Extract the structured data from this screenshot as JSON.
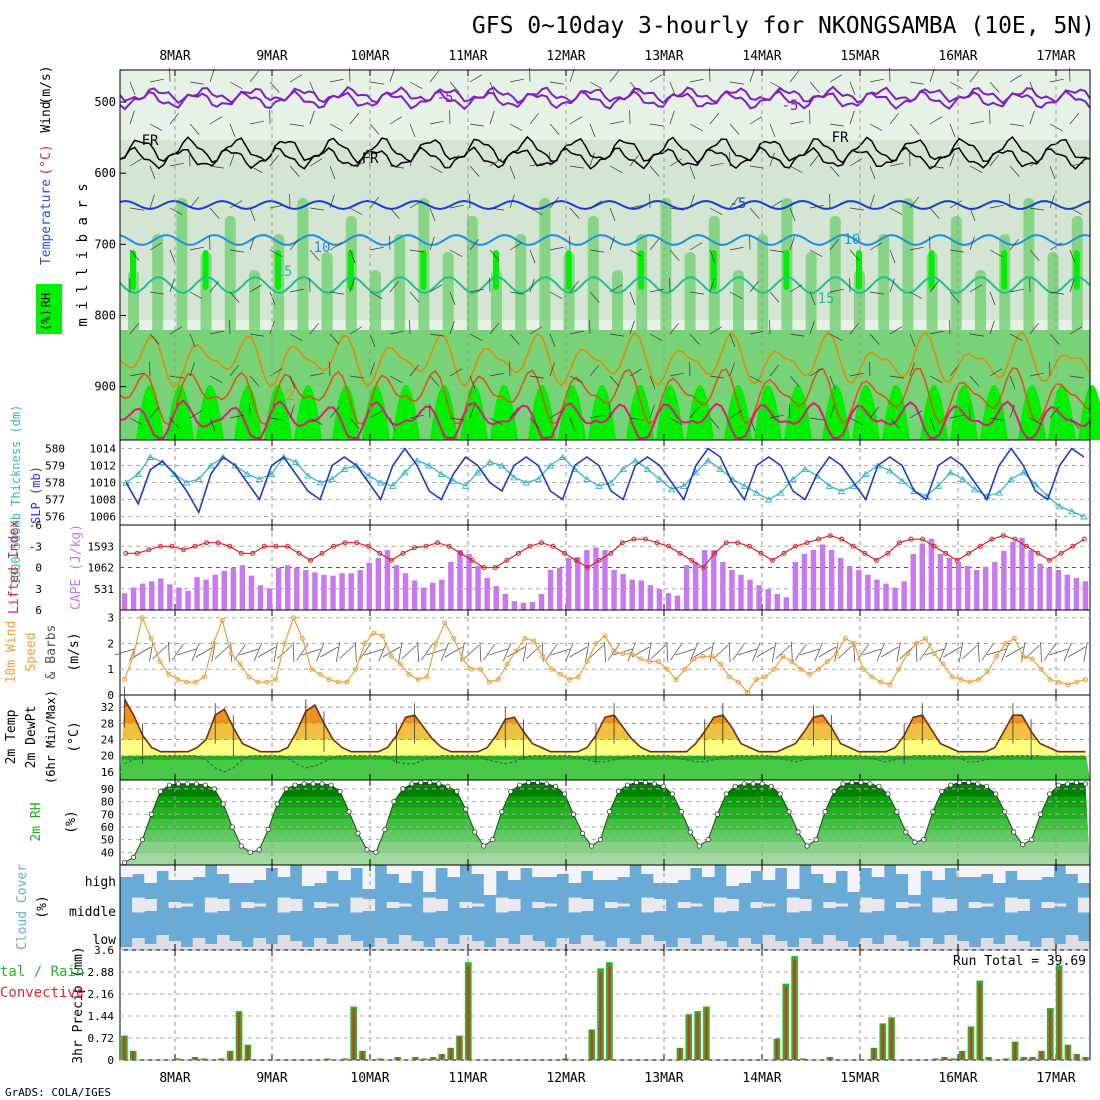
{
  "title": "GFS 0~10day 3-hourly for NKONGSAMBA (10E, 5N)",
  "footer": "GrADS: COLA/IGES",
  "dates": [
    "8MAR",
    "9MAR",
    "10MAR",
    "11MAR",
    "12MAR",
    "13MAR",
    "14MAR",
    "15MAR",
    "16MAR",
    "17MAR"
  ],
  "colors": {
    "rh_light": "#e6f2e6",
    "rh_mid": "#c8dcc8",
    "rh_green": "#78d278",
    "rh_bright": "#00f000",
    "slp": "#1e3cc8",
    "thickness": "#3cb4c8",
    "cape": "#c878f0",
    "lifted": "#d22828",
    "wind": "#f0a03c",
    "cloud": "#6aaad6",
    "precip_total": "#28b428",
    "precip_conv": "#e62828"
  },
  "panels": {
    "upper": {
      "ylabel_left": [
        "Wind",
        "(m/s)",
        "Temperature",
        "(°C)",
        "RH",
        "(%)"
      ],
      "ylabel_unit": "m i l l i b a r s",
      "yticks": [
        500,
        600,
        700,
        800,
        900
      ],
      "contour_labels": [
        "-5",
        "-5",
        "FR",
        "FR",
        "FR",
        "-5",
        "10",
        "10",
        "15",
        "15",
        "2"
      ]
    },
    "slp": {
      "ylabel_left": "1000-500mb Thickness (dm)",
      "ylabel_right": "SLP (mb)",
      "ticks_left": [
        580,
        579,
        578,
        577,
        576
      ],
      "ticks_right": [
        1014,
        1012,
        1010,
        1008,
        1006
      ]
    },
    "cape": {
      "ylabel_left": "Lifted Index",
      "ylabel_right": "CAPE (J/kg)",
      "ticks_left": [
        "-6",
        "-3",
        "0",
        "3",
        "6"
      ],
      "ticks_right": [
        1593,
        1062,
        531
      ]
    },
    "wind": {
      "ylabel": [
        "10m Wind",
        "Speed",
        "& Barbs",
        "(m/s)"
      ],
      "ticks": [
        3,
        2,
        1,
        0
      ]
    },
    "temp": {
      "ylabel": [
        "2m Temp",
        "2m DewPt",
        "(6hr Min/Max)",
        "(°C)"
      ],
      "ticks": [
        32,
        28,
        24,
        20,
        16
      ]
    },
    "rh": {
      "ylabel": [
        "2m RH",
        "(%)"
      ],
      "ticks": [
        90,
        80,
        70,
        60,
        50,
        40
      ]
    },
    "cloud": {
      "ylabel": [
        "Cloud Cover",
        "(%)"
      ],
      "levels": [
        "high",
        "middle",
        "low"
      ]
    },
    "precip": {
      "ylabel": [
        "3hr Precip (mm)"
      ],
      "legend": [
        "tal / Rain",
        "Convective"
      ],
      "run_total": "Run Total = 39.69",
      "ticks": [
        "3.6",
        "2.88",
        "2.16",
        "1.44",
        "0.72",
        "0"
      ]
    }
  },
  "chart_data": [
    {
      "type": "line",
      "name": "slp_thickness",
      "x_labels": [
        "8MAR",
        "9MAR",
        "10MAR",
        "11MAR",
        "12MAR",
        "13MAR",
        "14MAR",
        "15MAR",
        "16MAR",
        "17MAR"
      ],
      "series": [
        {
          "name": "SLP (mb)",
          "values": [
            1010,
            1007.5,
            1011.5,
            1012.5,
            1011,
            1009,
            1006.5,
            1011,
            1013,
            1012,
            1010,
            1008,
            1012,
            1013,
            1011,
            1009,
            1008,
            1012,
            1013,
            1012,
            1010,
            1008,
            1012,
            1014,
            1012,
            1009,
            1008,
            1011,
            1013,
            1012,
            1010,
            1009,
            1012,
            1013,
            1012,
            1009,
            1008,
            1012,
            1013,
            1012,
            1009,
            1008,
            1012,
            1013,
            1012,
            1010,
            1008,
            1012,
            1014,
            1013,
            1010,
            1008,
            1012,
            1013,
            1012,
            1009,
            1008,
            1011,
            1013,
            1012,
            1010,
            1008,
            1012,
            1013,
            1012,
            1009,
            1008,
            1012,
            1013,
            1012,
            1010,
            1008,
            1012,
            1014,
            1012,
            1009,
            1008,
            1012,
            1014,
            1013
          ]
        },
        {
          "name": "Thickness (dm)",
          "values": [
            578,
            578.5,
            579.5,
            579.2,
            578.5,
            578,
            578.2,
            579,
            579.5,
            579,
            578.5,
            578.2,
            578.5,
            579.5,
            579.2,
            578.4,
            578,
            578.2,
            578.8,
            579,
            578.4,
            578,
            577.8,
            578.6,
            579.3,
            579,
            578.5,
            578.1,
            577.8,
            578.6,
            579.2,
            579,
            578.3,
            578,
            578.2,
            579,
            579.5,
            578.8,
            578.2,
            577.8,
            578,
            578.8,
            579.3,
            578.8,
            578.2,
            577.6,
            577.8,
            578.6,
            579.3,
            578.8,
            578.2,
            577.8,
            577.4,
            577,
            577.4,
            578.2,
            578.8,
            578.4,
            577.8,
            577.5,
            577.8,
            578.5,
            579,
            578.7,
            578.1,
            577.5,
            577.2,
            577.8,
            578.6,
            578.2,
            577.6,
            577.2,
            577.4,
            578.2,
            578.6,
            577.9,
            577.2,
            576.6,
            576.3,
            576
          ]
        }
      ],
      "ylim_left": [
        575.5,
        580.5
      ],
      "ylim_right": [
        1005,
        1015
      ]
    },
    {
      "type": "bar",
      "name": "cape_lifted",
      "series": [
        {
          "name": "CAPE (J/kg)",
          "values": [
            420,
            560,
            660,
            720,
            790,
            640,
            560,
            480,
            820,
            760,
            880,
            980,
            1060,
            1120,
            860,
            620,
            540,
            1060,
            1120,
            1060,
            1000,
            940,
            880,
            860,
            920,
            920,
            1000,
            1180,
            1300,
            1500,
            1120,
            920,
            740,
            560,
            680,
            760,
            1200,
            1500,
            1400,
            1100,
            800,
            600,
            400,
            220,
            180,
            200,
            400,
            1000,
            1060,
            1300,
            1320,
            1500,
            1560,
            1500,
            1000,
            900,
            760,
            740,
            620,
            520,
            420,
            360,
            1120,
            1200,
            1500,
            1500,
            1200,
            1000,
            880,
            760,
            620,
            520,
            400,
            320,
            1200,
            1400,
            1500,
            1640,
            1500,
            1300,
            1100,
            1000,
            880,
            760,
            660,
            560,
            720,
            1400,
            1660,
            1780,
            1400,
            1300,
            1200,
            1100,
            1000,
            1080,
            1200,
            1480,
            1700,
            1800,
            1500,
            1160,
            1060,
            1000,
            880,
            800,
            720
          ]
        },
        {
          "name": "Lifted Index",
          "values": [
            -2,
            -2,
            -2.5,
            -3,
            -3,
            -2.5,
            -3,
            -3.5,
            -3.5,
            -3,
            -2,
            -2,
            -3,
            -3,
            -3,
            -2,
            -1,
            -2,
            -3,
            -3.5,
            -3.5,
            -3,
            -2,
            -1,
            -2,
            -2.8,
            -3,
            -3.5,
            -3,
            -2,
            -1,
            0,
            0,
            -1,
            -2,
            -3,
            -3.5,
            -3,
            -2,
            -1,
            0,
            -1,
            -2,
            -3.5,
            -4,
            -4,
            -3.5,
            -3,
            -2,
            -1,
            0,
            -2,
            -3.5,
            -3.5,
            -3,
            -2,
            -1,
            -2,
            -3,
            -3.5,
            -4,
            -4.5,
            -4,
            -3,
            -2,
            -1,
            -2,
            -3.5,
            -4,
            -4,
            -3,
            -2,
            -1,
            -2,
            -3,
            -4,
            -4.5,
            -4,
            -3,
            -2,
            -1,
            -2,
            -3,
            -4
          ]
        }
      ],
      "ylim_cape": [
        0,
        2124
      ],
      "ylim_li": [
        6,
        -6
      ]
    },
    {
      "type": "line",
      "name": "wind_speed",
      "series": [
        {
          "name": "10m Wind Speed (m/s)",
          "values": [
            0.6,
            1.5,
            3.0,
            2.2,
            1.3,
            0.8,
            0.6,
            0.5,
            0.5,
            0.7,
            2.0,
            2.9,
            1.6,
            1.2,
            0.7,
            0.5,
            0.5,
            0.6,
            2.0,
            3.0,
            2.2,
            1.0,
            0.8,
            0.6,
            0.5,
            0.5,
            1.0,
            2.0,
            2.4,
            2.3,
            1.5,
            1.2,
            0.8,
            0.6,
            0.7,
            2.0,
            2.8,
            2.2,
            1.4,
            1.0,
            1.0,
            0.5,
            0.6,
            1.2,
            1.7,
            2.2,
            2.1,
            1.5,
            1.0,
            0.8,
            0.6,
            0.7,
            1.3,
            2.0,
            2.3,
            1.7,
            1.6,
            1.6,
            1.4,
            1.3,
            1.3,
            1.0,
            0.6,
            1.0,
            1.4,
            1.5,
            1.5,
            1.2,
            0.7,
            0.5,
            0.1,
            0.6,
            0.7,
            1.0,
            1.5,
            1.3,
            1.0,
            0.8,
            1.0,
            1.3,
            1.6,
            2.2,
            2.0,
            1.0,
            0.7,
            0.5,
            0.4,
            1.0,
            1.6,
            2.0,
            2.2,
            1.6,
            1.2,
            0.7,
            0.6,
            0.5,
            0.6,
            0.9,
            1.5,
            2.0,
            2.2,
            1.5,
            1.4,
            1.0,
            0.6,
            0.5,
            0.4,
            0.5,
            0.6
          ]
        }
      ],
      "ylim": [
        0,
        3.3
      ]
    },
    {
      "type": "area",
      "name": "temperature",
      "series": [
        {
          "name": "2m Temp (°C)",
          "values": [
            34,
            30,
            25,
            22,
            21,
            21,
            21,
            21,
            22,
            24,
            30,
            31.5,
            27,
            23,
            22,
            21,
            21,
            21,
            22,
            26,
            31,
            32.5,
            28,
            24,
            22,
            21,
            21,
            21,
            21,
            22,
            25,
            29.5,
            30,
            27,
            24,
            22,
            21,
            21,
            21,
            21,
            22,
            25,
            29,
            29.5,
            26,
            23,
            22,
            21,
            21,
            21,
            21,
            22,
            25,
            29.5,
            30,
            27,
            24,
            22,
            21,
            21,
            21,
            21,
            21,
            23,
            26,
            29.5,
            30,
            27,
            23,
            22,
            21,
            21,
            21,
            22,
            23,
            26,
            29.5,
            30,
            27,
            23,
            22,
            21,
            21,
            21,
            21,
            22,
            25,
            29.5,
            30,
            26.5,
            23,
            22,
            21,
            21,
            21,
            21,
            22,
            26,
            30,
            30,
            26,
            23,
            22,
            21,
            21,
            21,
            21
          ]
        },
        {
          "name": "2m DewPt (°C)",
          "values": [
            18,
            19,
            19.5,
            20,
            20,
            20,
            20,
            20,
            20,
            19,
            17,
            16,
            17,
            19,
            20,
            20,
            20,
            20,
            19.5,
            18,
            17,
            17.5,
            18.5,
            19.5,
            20,
            20,
            20,
            20,
            20,
            19.5,
            18.5,
            18,
            18,
            19,
            19.5,
            20,
            20,
            20,
            20,
            20,
            19,
            18.5,
            18,
            18.5,
            19.5,
            20,
            20,
            20,
            20,
            20,
            19.5,
            19,
            18.5,
            18.5,
            19,
            19.5,
            20,
            20,
            20,
            20,
            20,
            19.5,
            19,
            18.5,
            18.5,
            19,
            19.5,
            20,
            20,
            20,
            20,
            20,
            19.5,
            19,
            18.5,
            19,
            19.5,
            20,
            20,
            20,
            20,
            20,
            19.5,
            19,
            18.5,
            19,
            19.5,
            20,
            20,
            20,
            20,
            20,
            19.5,
            18.5,
            18.5,
            19,
            19.5,
            20,
            20,
            20,
            20,
            20
          ]
        }
      ],
      "ylim": [
        14,
        35
      ]
    },
    {
      "type": "area",
      "name": "relative_humidity",
      "series": [
        {
          "name": "2m RH (%)",
          "values": [
            32,
            36,
            50,
            70,
            88,
            93,
            94,
            94,
            94,
            93,
            90,
            78,
            60,
            45,
            40,
            42,
            58,
            78,
            90,
            93,
            94,
            94,
            94,
            93,
            88,
            72,
            55,
            42,
            40,
            58,
            80,
            90,
            94,
            95,
            95,
            94,
            92,
            88,
            74,
            56,
            45,
            50,
            72,
            88,
            93,
            95,
            95,
            94,
            92,
            86,
            70,
            55,
            45,
            50,
            72,
            88,
            93,
            95,
            95,
            94,
            92,
            86,
            72,
            56,
            45,
            50,
            70,
            86,
            92,
            94,
            94,
            94,
            92,
            86,
            72,
            56,
            45,
            50,
            72,
            88,
            94,
            95,
            95,
            94,
            92,
            86,
            72,
            56,
            48,
            50,
            72,
            88,
            93,
            95,
            95,
            94,
            92,
            86,
            72,
            56,
            46,
            50,
            70,
            86,
            93,
            94,
            95,
            94
          ]
        }
      ],
      "ylim": [
        30,
        97
      ]
    },
    {
      "type": "bar",
      "name": "precipitation",
      "series": [
        {
          "name": "Total / Rain (mm)",
          "values": [
            0.8,
            0.3,
            0,
            0,
            0,
            0,
            0.05,
            0,
            0.1,
            0.05,
            0,
            0.05,
            0.3,
            1.6,
            0.5,
            0,
            0,
            0,
            0,
            0,
            0,
            0,
            0,
            0.05,
            0,
            0.05,
            1.75,
            0.3,
            0,
            0.05,
            0,
            0.1,
            0,
            0.1,
            0.05,
            0.1,
            0.2,
            0.4,
            0.8,
            3.2,
            0,
            0,
            0,
            0,
            0,
            0,
            0,
            0,
            0,
            0,
            0.05,
            0,
            0,
            1.0,
            3.0,
            3.2,
            0,
            0,
            0,
            0,
            0,
            0,
            0,
            0.4,
            1.5,
            1.6,
            1.75,
            0,
            0,
            0,
            0,
            0,
            0,
            0,
            0.7,
            2.5,
            3.4,
            0.05,
            0,
            0,
            0.1,
            0,
            0,
            0,
            0,
            0.4,
            1.2,
            1.4,
            0,
            0,
            0,
            0,
            0.05,
            0.1,
            0.05,
            0.3,
            1.1,
            2.6,
            0.1,
            0,
            0.05,
            0.6,
            0.1,
            0.1,
            0.3,
            1.7,
            3.1,
            0.5,
            0.2,
            0.1
          ]
        }
      ],
      "ylim": [
        0,
        3.6
      ]
    }
  ]
}
